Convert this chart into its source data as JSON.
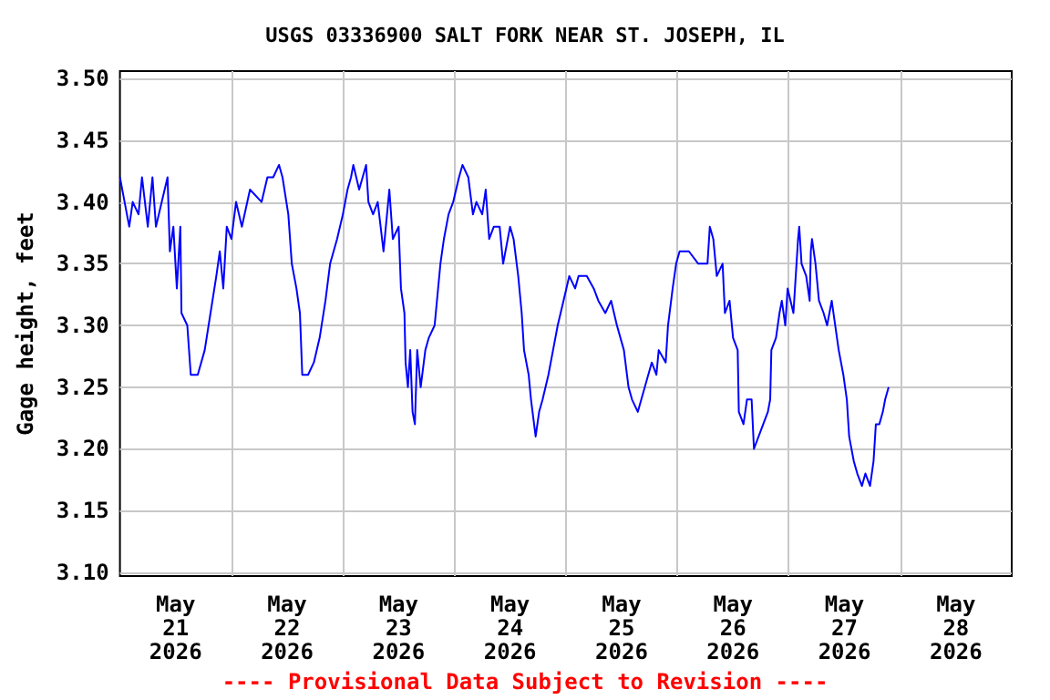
{
  "chart_data": {
    "type": "line",
    "title": "USGS 03336900 SALT FORK NEAR ST. JOSEPH, IL",
    "ylabel": "Gage height, feet",
    "annotations": [
      "---- Provisional Data Subject to Revision ----"
    ],
    "xlim": [
      "2026-05-21T00:00",
      "2026-05-29T00:00"
    ],
    "xticks": [
      {
        "value": "2026-05-21T12:00",
        "label": "May\n21\n2026"
      },
      {
        "value": "2026-05-22T12:00",
        "label": "May\n22\n2026"
      },
      {
        "value": "2026-05-23T12:00",
        "label": "May\n23\n2026"
      },
      {
        "value": "2026-05-24T12:00",
        "label": "May\n24\n2026"
      },
      {
        "value": "2026-05-25T12:00",
        "label": "May\n25\n2026"
      },
      {
        "value": "2026-05-26T12:00",
        "label": "May\n26\n2026"
      },
      {
        "value": "2026-05-27T12:00",
        "label": "May\n27\n2026"
      },
      {
        "value": "2026-05-28T12:00",
        "label": "May\n28\n2026"
      },
      {
        "value": "2026-05-22T00:00",
        "label": null
      },
      {
        "value": "2026-05-23T00:00",
        "label": null
      },
      {
        "value": "2026-05-24T00:00",
        "label": null
      },
      {
        "value": "2026-05-25T00:00",
        "label": null
      },
      {
        "value": "2026-05-26T00:00",
        "label": null
      },
      {
        "value": "2026-05-27T00:00",
        "label": null
      },
      {
        "value": "2026-05-28T00:00",
        "label": null
      }
    ],
    "ylim": [
      3.097,
      3.506
    ],
    "yticks": [
      {
        "value": 3.1,
        "label": "3.10"
      },
      {
        "value": 3.15,
        "label": "3.15"
      },
      {
        "value": 3.2,
        "label": "3.20"
      },
      {
        "value": 3.25,
        "label": "3.25"
      },
      {
        "value": 3.3,
        "label": "3.30"
      },
      {
        "value": 3.35,
        "label": "3.35"
      },
      {
        "value": 3.4,
        "label": "3.40"
      },
      {
        "value": 3.45,
        "label": "3.45"
      },
      {
        "value": 3.5,
        "label": "3.50"
      }
    ],
    "grid": true,
    "line_style": "solid",
    "series": [
      {
        "color": "#0000ff",
        "x": [
          "2026-05-21T00:00",
          "2026-05-21T01:00",
          "2026-05-21T02:00",
          "2026-05-21T02:45",
          "2026-05-21T04:00",
          "2026-05-21T04:45",
          "2026-05-21T06:00",
          "2026-05-21T07:00",
          "2026-05-21T07:45",
          "2026-05-21T09:00",
          "2026-05-21T10:15",
          "2026-05-21T10:45",
          "2026-05-21T11:30",
          "2026-05-21T12:15",
          "2026-05-21T13:00",
          "2026-05-21T13:15",
          "2026-05-21T14:30",
          "2026-05-21T15:15",
          "2026-05-21T16:45",
          "2026-05-21T18:15",
          "2026-05-21T19:30",
          "2026-05-21T20:45",
          "2026-05-21T21:30",
          "2026-05-21T22:15",
          "2026-05-21T23:00",
          "2026-05-22T00:00",
          "2026-05-22T01:00",
          "2026-05-22T02:15",
          "2026-05-22T04:00",
          "2026-05-22T06:30",
          "2026-05-22T07:45",
          "2026-05-22T09:00",
          "2026-05-22T10:15",
          "2026-05-22T11:00",
          "2026-05-22T12:15",
          "2026-05-22T13:00",
          "2026-05-22T14:00",
          "2026-05-22T14:45",
          "2026-05-22T15:15",
          "2026-05-22T16:30",
          "2026-05-22T17:45",
          "2026-05-22T19:00",
          "2026-05-22T20:15",
          "2026-05-22T21:15",
          "2026-05-22T22:45",
          "2026-05-23T00:00",
          "2026-05-23T01:00",
          "2026-05-23T01:45",
          "2026-05-23T02:15",
          "2026-05-23T03:30",
          "2026-05-23T05:00",
          "2026-05-23T05:30",
          "2026-05-23T06:30",
          "2026-05-23T07:30",
          "2026-05-23T08:45",
          "2026-05-23T10:00",
          "2026-05-23T10:45",
          "2026-05-23T12:00",
          "2026-05-23T12:30",
          "2026-05-23T13:15",
          "2026-05-23T13:30",
          "2026-05-23T14:00",
          "2026-05-23T14:30",
          "2026-05-23T15:00",
          "2026-05-23T15:30",
          "2026-05-23T16:00",
          "2026-05-23T16:45",
          "2026-05-23T17:45",
          "2026-05-23T18:30",
          "2026-05-23T19:45",
          "2026-05-23T21:00",
          "2026-05-23T21:45",
          "2026-05-23T22:45",
          "2026-05-23T23:45",
          "2026-05-24T01:00",
          "2026-05-24T01:45",
          "2026-05-24T03:00",
          "2026-05-24T04:00",
          "2026-05-24T04:45",
          "2026-05-24T06:00",
          "2026-05-24T06:45",
          "2026-05-24T07:30",
          "2026-05-24T08:30",
          "2026-05-24T09:45",
          "2026-05-24T10:30",
          "2026-05-24T12:00",
          "2026-05-24T12:45",
          "2026-05-24T13:45",
          "2026-05-24T14:30",
          "2026-05-24T15:00",
          "2026-05-24T16:00",
          "2026-05-24T16:30",
          "2026-05-24T17:30",
          "2026-05-24T18:15",
          "2026-05-24T19:00",
          "2026-05-24T20:15",
          "2026-05-24T21:15",
          "2026-05-24T22:15",
          "2026-05-24T23:30",
          "2026-05-25T00:45",
          "2026-05-25T02:00",
          "2026-05-25T02:45",
          "2026-05-25T04:30",
          "2026-05-25T06:00",
          "2026-05-25T07:00",
          "2026-05-25T08:30",
          "2026-05-25T09:45",
          "2026-05-25T11:00",
          "2026-05-25T12:30",
          "2026-05-25T13:30",
          "2026-05-25T14:15",
          "2026-05-25T15:30",
          "2026-05-25T16:15",
          "2026-05-25T17:00",
          "2026-05-25T18:30",
          "2026-05-25T19:30",
          "2026-05-25T20:00",
          "2026-05-25T21:30",
          "2026-05-25T22:00",
          "2026-05-25T23:00",
          "2026-05-25T23:45",
          "2026-05-26T00:30",
          "2026-05-26T02:30",
          "2026-05-26T04:30",
          "2026-05-26T06:30",
          "2026-05-26T07:00",
          "2026-05-26T07:45",
          "2026-05-26T08:30",
          "2026-05-26T09:45",
          "2026-05-26T10:15",
          "2026-05-26T11:15",
          "2026-05-26T12:00",
          "2026-05-26T13:00",
          "2026-05-26T13:15",
          "2026-05-26T14:15",
          "2026-05-26T15:00",
          "2026-05-26T16:00",
          "2026-05-26T16:30",
          "2026-05-26T17:30",
          "2026-05-26T18:30",
          "2026-05-26T19:30",
          "2026-05-26T20:00",
          "2026-05-26T20:15",
          "2026-05-26T21:15",
          "2026-05-26T22:00",
          "2026-05-26T22:30",
          "2026-05-26T23:15",
          "2026-05-26T23:45",
          "2026-05-27T01:00",
          "2026-05-27T01:30",
          "2026-05-27T02:00",
          "2026-05-27T02:15",
          "2026-05-27T02:45",
          "2026-05-27T03:45",
          "2026-05-27T04:30",
          "2026-05-27T04:45",
          "2026-05-27T05:00",
          "2026-05-27T05:45",
          "2026-05-27T06:30",
          "2026-05-27T07:30",
          "2026-05-27T08:15",
          "2026-05-27T09:15",
          "2026-05-27T10:00",
          "2026-05-27T10:45",
          "2026-05-27T11:45",
          "2026-05-27T12:30",
          "2026-05-27T13:00",
          "2026-05-27T14:00",
          "2026-05-27T14:45",
          "2026-05-27T15:45",
          "2026-05-27T16:30",
          "2026-05-27T17:30",
          "2026-05-27T18:15",
          "2026-05-27T18:45",
          "2026-05-27T19:30",
          "2026-05-27T20:15",
          "2026-05-27T20:45",
          "2026-05-27T21:30"
        ],
        "values": [
          3.42,
          3.4,
          3.38,
          3.4,
          3.39,
          3.42,
          3.38,
          3.42,
          3.38,
          3.4,
          3.42,
          3.36,
          3.38,
          3.33,
          3.38,
          3.31,
          3.3,
          3.26,
          3.26,
          3.28,
          3.31,
          3.34,
          3.36,
          3.33,
          3.38,
          3.37,
          3.4,
          3.38,
          3.41,
          3.4,
          3.42,
          3.42,
          3.43,
          3.42,
          3.39,
          3.35,
          3.33,
          3.31,
          3.26,
          3.26,
          3.27,
          3.29,
          3.32,
          3.35,
          3.37,
          3.39,
          3.41,
          3.42,
          3.43,
          3.41,
          3.43,
          3.4,
          3.39,
          3.4,
          3.36,
          3.41,
          3.37,
          3.38,
          3.33,
          3.31,
          3.27,
          3.25,
          3.28,
          3.23,
          3.22,
          3.28,
          3.25,
          3.28,
          3.29,
          3.3,
          3.35,
          3.37,
          3.39,
          3.4,
          3.42,
          3.43,
          3.42,
          3.39,
          3.4,
          3.39,
          3.41,
          3.37,
          3.38,
          3.38,
          3.35,
          3.38,
          3.37,
          3.34,
          3.31,
          3.28,
          3.26,
          3.24,
          3.21,
          3.23,
          3.24,
          3.26,
          3.28,
          3.3,
          3.32,
          3.34,
          3.33,
          3.34,
          3.34,
          3.33,
          3.32,
          3.31,
          3.32,
          3.3,
          3.28,
          3.25,
          3.24,
          3.23,
          3.24,
          3.25,
          3.27,
          3.26,
          3.28,
          3.27,
          3.3,
          3.33,
          3.35,
          3.36,
          3.36,
          3.35,
          3.35,
          3.38,
          3.37,
          3.34,
          3.35,
          3.31,
          3.32,
          3.29,
          3.28,
          3.23,
          3.22,
          3.24,
          3.24,
          3.2,
          3.21,
          3.22,
          3.23,
          3.24,
          3.28,
          3.29,
          3.31,
          3.32,
          3.3,
          3.33,
          3.31,
          3.34,
          3.37,
          3.38,
          3.35,
          3.34,
          3.32,
          3.36,
          3.37,
          3.35,
          3.32,
          3.31,
          3.3,
          3.32,
          3.3,
          3.28,
          3.26,
          3.24,
          3.21,
          3.19,
          3.18,
          3.17,
          3.18,
          3.17,
          3.19,
          3.22,
          3.22,
          3.23,
          3.24,
          3.25
        ]
      }
    ]
  }
}
